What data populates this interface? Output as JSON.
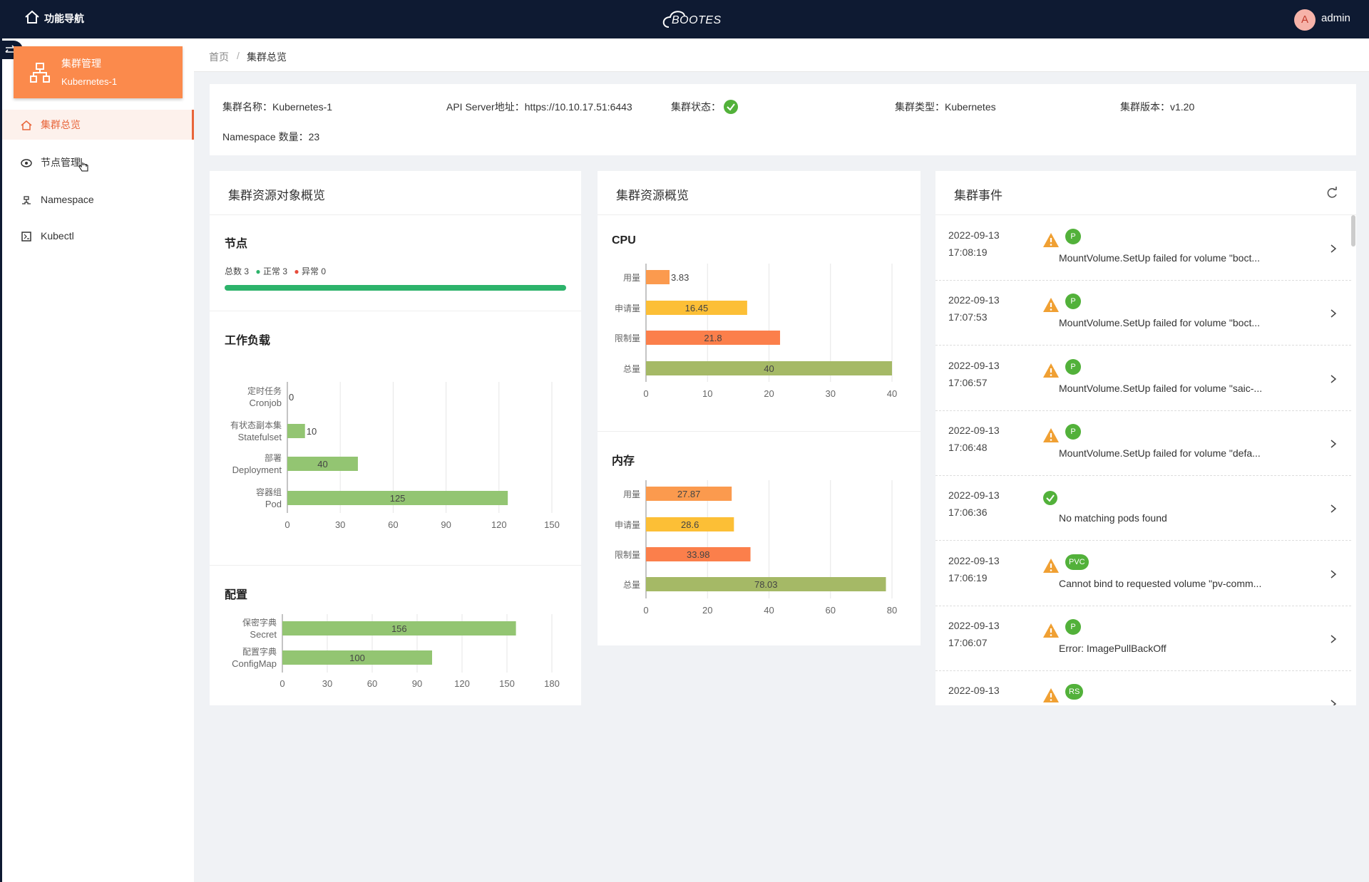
{
  "header": {
    "nav": "功能导航",
    "logo": "BOOTES",
    "avatar": "A",
    "user": "admin"
  },
  "sidebar": {
    "cluster_title": "集群管理",
    "cluster_name": "Kubernetes-1",
    "menu": [
      "集群总览",
      "节点管理",
      "Namespace",
      "Kubectl"
    ]
  },
  "breadcrumb": {
    "items": [
      "首页",
      "集群总览"
    ],
    "separator": "/"
  },
  "info": {
    "items": [
      {
        "label": "集群名称：",
        "value": "Kubernetes-1"
      },
      {
        "label": "API Server地址：",
        "value": "https://10.10.17.51:6443"
      },
      {
        "label": "集群状态："
      },
      {
        "label": "集群类型：",
        "value": "Kubernetes"
      },
      {
        "label": "集群版本：",
        "value": "v1.20"
      }
    ],
    "namespace_label": "Namespace 数量：",
    "namespace_count": 23
  },
  "resources": {
    "title": "集群资源对象概览",
    "nodes": {
      "title": "节点",
      "total_label": "总数",
      "total": 3,
      "normal_label": "正常",
      "normal": 3,
      "abnormal_label": "异常",
      "abnormal": 0
    },
    "workload": {
      "type": "bar",
      "title": "工作负载",
      "categories": [
        {
          "cn": "定时任务",
          "en": "Cronjob"
        },
        {
          "cn": "有状态副本集",
          "en": "Statefulset"
        },
        {
          "cn": "部署",
          "en": "Deployment"
        },
        {
          "cn": "容器组",
          "en": "Pod"
        }
      ],
      "values": [
        0,
        10,
        40,
        125
      ],
      "color": "#93c572",
      "xlim": [
        0,
        150
      ],
      "xticks": [
        0,
        30,
        60,
        90,
        120,
        150
      ],
      "grid": true
    },
    "config": {
      "type": "bar",
      "title": "配置",
      "categories": [
        {
          "cn": "保密字典",
          "en": "Secret"
        },
        {
          "cn": "配置字典",
          "en": "ConfigMap"
        }
      ],
      "values": [
        156,
        100
      ],
      "color": "#93c572",
      "xlim": [
        0,
        180
      ],
      "xticks": [
        0,
        30,
        60,
        90,
        120,
        150,
        180
      ],
      "grid": true
    }
  },
  "usage": {
    "title": "集群资源概览",
    "cpu": {
      "type": "bar",
      "title": "CPU",
      "categories": [
        "用量",
        "申请量",
        "限制量",
        "总量"
      ],
      "values": [
        3.83,
        16.45,
        21.8,
        40
      ],
      "colors": [
        "#fb9a4e",
        "#fcbf36",
        "#fb7f4b",
        "#a5b966"
      ],
      "xlim": [
        0,
        40
      ],
      "xticks": [
        0,
        10,
        20,
        30,
        40
      ],
      "grid": true
    },
    "memory": {
      "type": "bar",
      "title": "内存",
      "categories": [
        "用量",
        "申请量",
        "限制量",
        "总量"
      ],
      "values": [
        27.87,
        28.6,
        33.98,
        78.03
      ],
      "colors": [
        "#fb9a4e",
        "#fcbf36",
        "#fb7f4b",
        "#a5b966"
      ],
      "xlim": [
        0,
        80
      ],
      "xticks": [
        0,
        20,
        40,
        60,
        80
      ],
      "grid": true
    }
  },
  "events": {
    "title": "集群事件",
    "items": [
      {
        "date": "2022-09-13",
        "time": "17:08:19",
        "icon": "warning",
        "tag": "P",
        "message": "MountVolume.SetUp failed for volume \"boct..."
      },
      {
        "date": "2022-09-13",
        "time": "17:07:53",
        "icon": "warning",
        "tag": "P",
        "message": "MountVolume.SetUp failed for volume \"boct..."
      },
      {
        "date": "2022-09-13",
        "time": "17:06:57",
        "icon": "warning",
        "tag": "P",
        "message": "MountVolume.SetUp failed for volume \"saic-..."
      },
      {
        "date": "2022-09-13",
        "time": "17:06:48",
        "icon": "warning",
        "tag": "P",
        "message": "MountVolume.SetUp failed for volume \"defa..."
      },
      {
        "date": "2022-09-13",
        "time": "17:06:36",
        "icon": "ok",
        "message": "No matching pods found"
      },
      {
        "date": "2022-09-13",
        "time": "17:06:19",
        "icon": "warning",
        "tag": "PVC",
        "message": "Cannot bind to requested volume \"pv-comm..."
      },
      {
        "date": "2022-09-13",
        "time": "17:06:07",
        "icon": "warning",
        "tag": "P",
        "message": "Error: ImagePullBackOff"
      },
      {
        "date": "2022-09-13",
        "icon": "warning",
        "tag": "RS"
      }
    ]
  }
}
